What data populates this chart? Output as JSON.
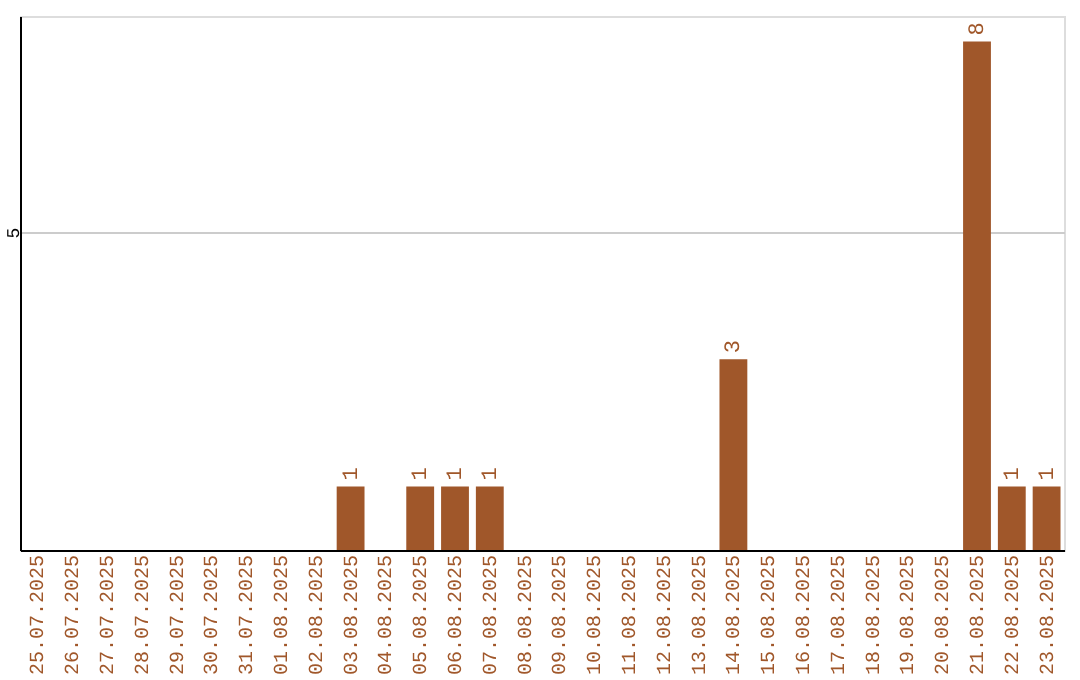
{
  "chart_data": {
    "type": "bar",
    "categories": [
      "25.07.2025",
      "26.07.2025",
      "27.07.2025",
      "28.07.2025",
      "29.07.2025",
      "30.07.2025",
      "31.07.2025",
      "01.08.2025",
      "02.08.2025",
      "03.08.2025",
      "04.08.2025",
      "05.08.2025",
      "06.08.2025",
      "07.08.2025",
      "08.08.2025",
      "09.08.2025",
      "10.08.2025",
      "11.08.2025",
      "12.08.2025",
      "13.08.2025",
      "14.08.2025",
      "15.08.2025",
      "16.08.2025",
      "17.08.2025",
      "18.08.2025",
      "19.08.2025",
      "20.08.2025",
      "21.08.2025",
      "22.08.2025",
      "23.08.2025"
    ],
    "values": [
      0,
      0,
      0,
      0,
      0,
      0,
      0,
      0,
      0,
      1,
      0,
      1,
      1,
      1,
      0,
      0,
      0,
      0,
      0,
      0,
      3,
      0,
      0,
      0,
      0,
      0,
      0,
      8,
      1,
      1
    ],
    "value_labels": [
      null,
      null,
      null,
      null,
      null,
      null,
      null,
      null,
      null,
      "1",
      null,
      "1",
      "1",
      "1",
      null,
      null,
      null,
      null,
      null,
      null,
      "3",
      null,
      null,
      null,
      null,
      null,
      null,
      "8",
      "1",
      "1"
    ],
    "color": "#a0572a",
    "ylim": [
      0,
      8.4
    ],
    "yticks": [
      5
    ],
    "grid": "y"
  }
}
